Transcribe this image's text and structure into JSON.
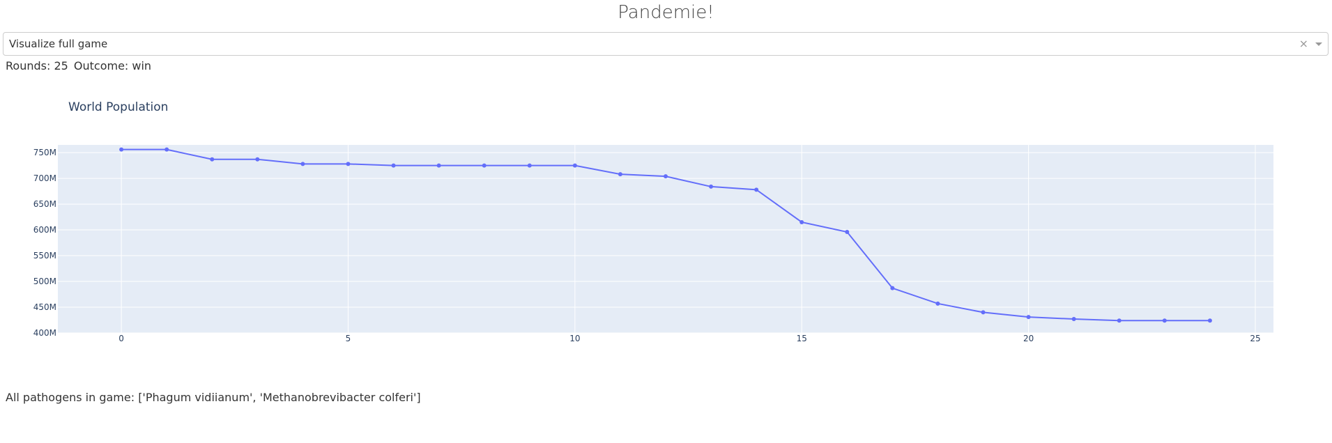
{
  "header": {
    "title": "Pandemie!"
  },
  "selector": {
    "value": "Visualize full game",
    "clear_symbol": "×"
  },
  "stats": {
    "rounds_label": "Rounds: 25",
    "outcome_label": "Outcome: win"
  },
  "pathogens_text": "All pathogens in game: ['Phagum vidiianum', 'Methanobrevibacter colferi']",
  "colors": {
    "line": "#636efa",
    "plot_bg": "#e5ecf6",
    "grid": "#ffffff",
    "title": "#2a3f5f"
  },
  "chart_data": {
    "type": "line",
    "title": "World Population",
    "xlabel": "",
    "ylabel": "",
    "xlim": [
      -1.4,
      25.4
    ],
    "ylim": [
      400,
      765
    ],
    "x_ticks": [
      0,
      5,
      10,
      15,
      20,
      25
    ],
    "y_ticks": [
      400,
      450,
      500,
      550,
      600,
      650,
      700,
      750
    ],
    "y_tick_labels": [
      "400M",
      "450M",
      "500M",
      "550M",
      "600M",
      "650M",
      "700M",
      "750M"
    ],
    "x": [
      0,
      1,
      2,
      3,
      4,
      5,
      6,
      7,
      8,
      9,
      10,
      11,
      12,
      13,
      14,
      15,
      16,
      17,
      18,
      19,
      20,
      21,
      22,
      23,
      24
    ],
    "values": [
      756,
      756,
      737,
      737,
      728,
      728,
      725,
      725,
      725,
      725,
      725,
      708,
      704,
      684,
      678,
      615,
      596,
      487,
      457,
      440,
      431,
      427,
      424,
      424,
      424
    ],
    "grid": true
  }
}
